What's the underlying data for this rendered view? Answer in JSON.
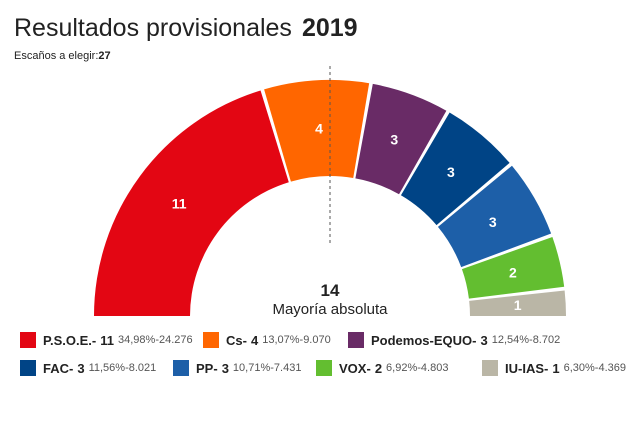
{
  "header": {
    "title": "Resultados provisionales",
    "year": "2019",
    "seats_label": "Escaños a elegir:",
    "seats_total": "27"
  },
  "majority": {
    "value": "14",
    "label": "Mayoría absoluta"
  },
  "chart_data": {
    "type": "pie",
    "shape": "hemicycle",
    "total_seats": 27,
    "majority": 14,
    "series": [
      {
        "name": "P.S.O.E.",
        "seats": 11,
        "percent": "34,98%",
        "votes": "24.276",
        "color": "#e30613",
        "label_color": "#ffffff"
      },
      {
        "name": "Cs",
        "seats": 4,
        "percent": "13,07%",
        "votes": "9.070",
        "color": "#ff6600",
        "label_color": "#ffffff"
      },
      {
        "name": "Podemos-EQUO",
        "seats": 3,
        "percent": "12,54%",
        "votes": "8.702",
        "color": "#692b66",
        "label_color": "#ffffff"
      },
      {
        "name": "FAC",
        "seats": 3,
        "percent": "11,56%",
        "votes": "8.021",
        "color": "#004486",
        "label_color": "#ffffff"
      },
      {
        "name": "PP",
        "seats": 3,
        "percent": "10,71%",
        "votes": "7.431",
        "color": "#1d5fa8",
        "label_color": "#ffffff"
      },
      {
        "name": "VOX",
        "seats": 2,
        "percent": "6,92%",
        "votes": "4.803",
        "color": "#63be30",
        "label_color": "#ffffff"
      },
      {
        "name": "IU-IAS",
        "seats": 1,
        "percent": "6,30%",
        "votes": "4.369",
        "color": "#bab6a6",
        "label_color": "#ffffff"
      }
    ]
  },
  "legend": {
    "separator": "-",
    "votes_separator": "-"
  }
}
